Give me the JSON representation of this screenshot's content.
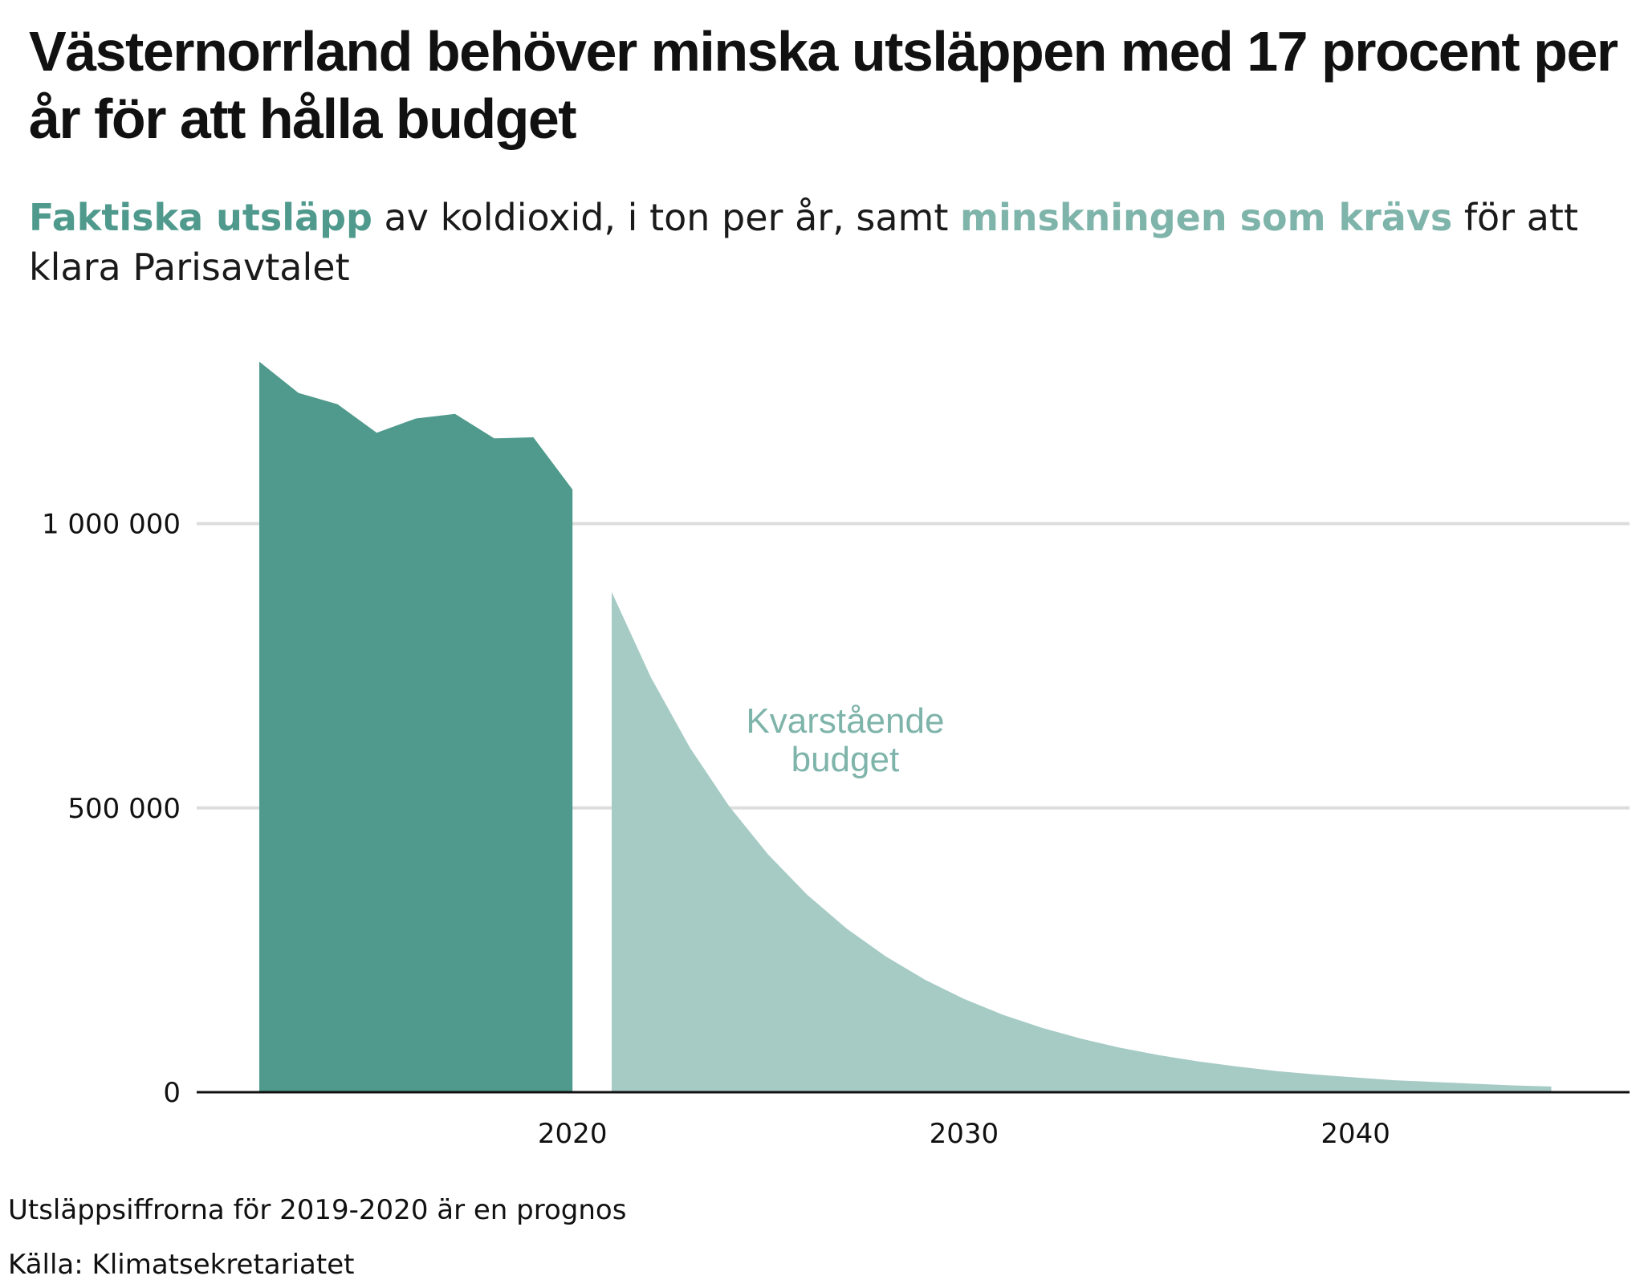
{
  "title": "Västernorrland behöver minska utsläppen med 17 procent per år för att hålla budget",
  "subtitle": {
    "hl1": "Faktiska utsläpp",
    "part1": " av koldioxid, i ton per år, samt ",
    "hl2": "minskningen som krävs",
    "part2": " för att klara Parisavtalet"
  },
  "note": "Utsläppsiffrorna för 2019-2020 är en prognos",
  "source": "Källa: Klimatsekretariatet",
  "colors": {
    "actual": "#4f9a8d",
    "budget": "#a6cbc5",
    "annotation": "#7eb4aa",
    "grid": "#dddddd",
    "axis": "#111111"
  },
  "chart_data": {
    "type": "area",
    "xlim": [
      2010.4,
      2047.0
    ],
    "ylim": [
      0,
      1300000
    ],
    "yticks": [
      {
        "value": 0,
        "label": "0"
      },
      {
        "value": 500000,
        "label": "500 000"
      },
      {
        "value": 1000000,
        "label": "1 000 000"
      }
    ],
    "xticks": [
      {
        "value": 2020,
        "label": "2020"
      },
      {
        "value": 2030,
        "label": "2030"
      },
      {
        "value": 2040,
        "label": "2040"
      }
    ],
    "grid": true,
    "annotation": {
      "lines": [
        "Kvarstående",
        "budget"
      ],
      "x": 2024.3,
      "y": 610000
    },
    "series": [
      {
        "x": [
          2012,
          2013,
          2014,
          2015,
          2016,
          2017,
          2018,
          2019,
          2020
        ],
        "y": [
          1285000,
          1230000,
          1210000,
          1160000,
          1185000,
          1193000,
          1150000,
          1152000,
          1060000
        ]
      },
      {
        "x": [
          2021,
          2022,
          2023,
          2024,
          2025,
          2026,
          2027,
          2028,
          2029,
          2030,
          2031,
          2032,
          2033,
          2034,
          2035,
          2036,
          2037,
          2038,
          2039,
          2040,
          2041,
          2042,
          2043,
          2044,
          2045
        ],
        "y": [
          880000,
          730000,
          606000,
          503000,
          418000,
          347000,
          288000,
          239000,
          198000,
          164000,
          136000,
          113000,
          94000,
          78000,
          65000,
          54000,
          45000,
          37000,
          31000,
          26000,
          21000,
          18000,
          15000,
          12000,
          10000
        ]
      }
    ]
  }
}
